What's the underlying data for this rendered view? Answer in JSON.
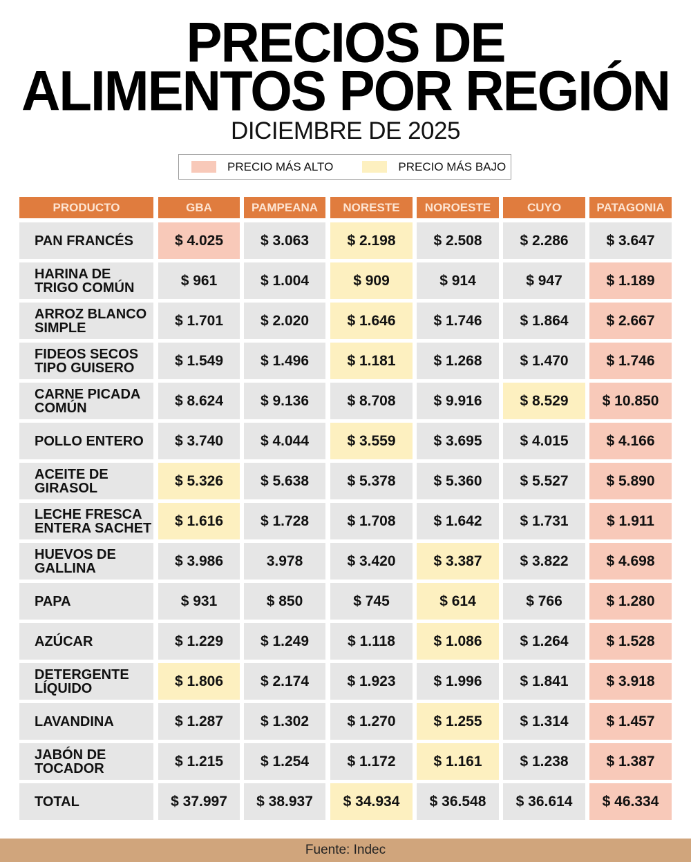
{
  "title_line1": "PRECIOS DE",
  "title_line2": "ALIMENTOS POR REGIÓN",
  "subtitle": "DICIEMBRE DE 2025",
  "legend": {
    "high_label": "PRECIO MÁS ALTO",
    "low_label": "PRECIO MÁS BAJO",
    "high_color": "#f8c9b9",
    "low_color": "#fdf0c0"
  },
  "colors": {
    "header": "#e07c3e",
    "cell": "#e6e6e6",
    "footer": "#d0a57c"
  },
  "table": {
    "headers": [
      "PRODUCTO",
      "GBA",
      "PAMPEANA",
      "NORESTE",
      "NOROESTE",
      "CUYO",
      "PATAGONIA"
    ],
    "rows": [
      {
        "product": [
          "PAN FRANCÉS"
        ],
        "cells": [
          {
            "v": "$ 4.025",
            "m": "h"
          },
          {
            "v": "$ 3.063"
          },
          {
            "v": "$ 2.198",
            "m": "l"
          },
          {
            "v": "$ 2.508"
          },
          {
            "v": "$ 2.286"
          },
          {
            "v": "$ 3.647"
          }
        ]
      },
      {
        "product": [
          "HARINA DE",
          "TRIGO COMÚN"
        ],
        "cells": [
          {
            "v": "$ 961"
          },
          {
            "v": "$ 1.004"
          },
          {
            "v": "$ 909",
            "m": "l"
          },
          {
            "v": "$ 914"
          },
          {
            "v": "$ 947"
          },
          {
            "v": "$ 1.189",
            "m": "h"
          }
        ]
      },
      {
        "product": [
          "ARROZ BLANCO",
          "SIMPLE"
        ],
        "cells": [
          {
            "v": "$ 1.701"
          },
          {
            "v": "$ 2.020"
          },
          {
            "v": "$ 1.646",
            "m": "l"
          },
          {
            "v": "$ 1.746"
          },
          {
            "v": "$ 1.864"
          },
          {
            "v": "$ 2.667",
            "m": "h"
          }
        ]
      },
      {
        "product": [
          "FIDEOS SECOS",
          "TIPO GUISERO"
        ],
        "cells": [
          {
            "v": "$ 1.549"
          },
          {
            "v": "$ 1.496"
          },
          {
            "v": "$ 1.181",
            "m": "l"
          },
          {
            "v": "$ 1.268"
          },
          {
            "v": "$ 1.470"
          },
          {
            "v": "$ 1.746",
            "m": "h"
          }
        ]
      },
      {
        "product": [
          "CARNE PICADA",
          "COMÚN"
        ],
        "cells": [
          {
            "v": "$ 8.624"
          },
          {
            "v": "$ 9.136"
          },
          {
            "v": "$ 8.708"
          },
          {
            "v": "$ 9.916"
          },
          {
            "v": "$ 8.529",
            "m": "l"
          },
          {
            "v": "$ 10.850",
            "m": "h"
          }
        ]
      },
      {
        "product": [
          "POLLO ENTERO"
        ],
        "cells": [
          {
            "v": "$ 3.740"
          },
          {
            "v": "$ 4.044"
          },
          {
            "v": "$ 3.559",
            "m": "l"
          },
          {
            "v": "$ 3.695"
          },
          {
            "v": "$ 4.015"
          },
          {
            "v": "$ 4.166",
            "m": "h"
          }
        ]
      },
      {
        "product": [
          "ACEITE DE",
          "GIRASOL"
        ],
        "cells": [
          {
            "v": "$ 5.326",
            "m": "l"
          },
          {
            "v": "$ 5.638"
          },
          {
            "v": "$ 5.378"
          },
          {
            "v": "$ 5.360"
          },
          {
            "v": "$ 5.527"
          },
          {
            "v": "$ 5.890",
            "m": "h"
          }
        ]
      },
      {
        "product": [
          "LECHE FRESCA",
          "ENTERA SACHET"
        ],
        "cells": [
          {
            "v": "$ 1.616",
            "m": "l"
          },
          {
            "v": "$ 1.728"
          },
          {
            "v": "$ 1.708"
          },
          {
            "v": "$ 1.642"
          },
          {
            "v": "$ 1.731"
          },
          {
            "v": "$ 1.911",
            "m": "h"
          }
        ]
      },
      {
        "product": [
          "HUEVOS DE",
          "GALLINA"
        ],
        "cells": [
          {
            "v": "$ 3.986"
          },
          {
            "v": "3.978"
          },
          {
            "v": "$ 3.420"
          },
          {
            "v": "$ 3.387",
            "m": "l"
          },
          {
            "v": "$ 3.822"
          },
          {
            "v": "$ 4.698",
            "m": "h"
          }
        ]
      },
      {
        "product": [
          "PAPA"
        ],
        "cells": [
          {
            "v": "$ 931"
          },
          {
            "v": "$ 850"
          },
          {
            "v": "$ 745"
          },
          {
            "v": "$ 614",
            "m": "l"
          },
          {
            "v": "$ 766"
          },
          {
            "v": "$ 1.280",
            "m": "h"
          }
        ]
      },
      {
        "product": [
          "AZÚCAR"
        ],
        "cells": [
          {
            "v": "$ 1.229"
          },
          {
            "v": "$ 1.249"
          },
          {
            "v": "$ 1.118"
          },
          {
            "v": "$ 1.086",
            "m": "l"
          },
          {
            "v": "$ 1.264"
          },
          {
            "v": "$ 1.528",
            "m": "h"
          }
        ]
      },
      {
        "product": [
          "DETERGENTE",
          "LÍQUIDO"
        ],
        "cells": [
          {
            "v": "$ 1.806",
            "m": "l"
          },
          {
            "v": "$ 2.174"
          },
          {
            "v": "$ 1.923"
          },
          {
            "v": "$ 1.996"
          },
          {
            "v": "$ 1.841"
          },
          {
            "v": "$ 3.918",
            "m": "h"
          }
        ]
      },
      {
        "product": [
          "LAVANDINA"
        ],
        "cells": [
          {
            "v": "$ 1.287"
          },
          {
            "v": "$ 1.302"
          },
          {
            "v": "$ 1.270"
          },
          {
            "v": "$ 1.255",
            "m": "l"
          },
          {
            "v": "$ 1.314"
          },
          {
            "v": "$ 1.457",
            "m": "h"
          }
        ]
      },
      {
        "product": [
          "JABÓN DE",
          "TOCADOR"
        ],
        "cells": [
          {
            "v": "$ 1.215"
          },
          {
            "v": "$ 1.254"
          },
          {
            "v": "$ 1.172"
          },
          {
            "v": "$ 1.161",
            "m": "l"
          },
          {
            "v": "$ 1.238"
          },
          {
            "v": "$ 1.387",
            "m": "h"
          }
        ]
      },
      {
        "product": [
          "TOTAL"
        ],
        "cells": [
          {
            "v": "$ 37.997"
          },
          {
            "v": "$ 38.937"
          },
          {
            "v": "$ 34.934",
            "m": "l"
          },
          {
            "v": "$ 36.548"
          },
          {
            "v": "$ 36.614"
          },
          {
            "v": "$ 46.334",
            "m": "h"
          }
        ]
      }
    ]
  },
  "footer": "Fuente: Indec"
}
